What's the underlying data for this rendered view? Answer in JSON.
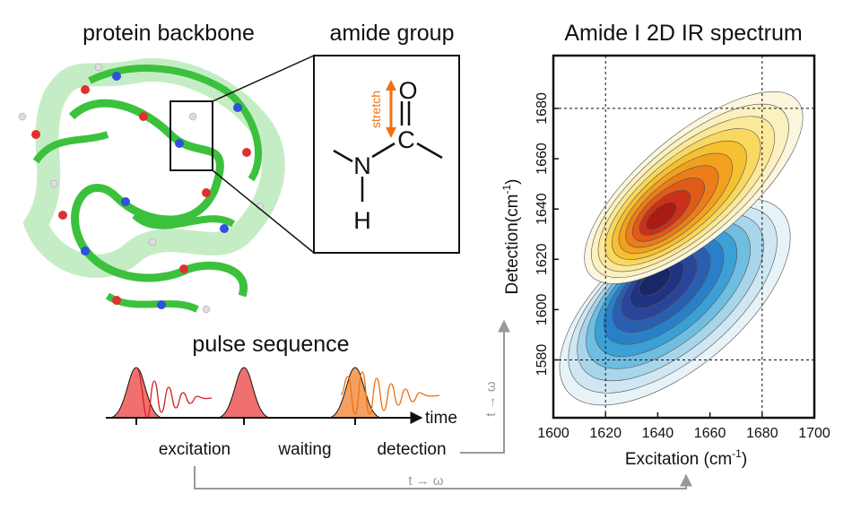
{
  "labels": {
    "protein": "protein backbone",
    "amide": "amide group",
    "stretch": "stretch",
    "atom_o": "O",
    "atom_c": "C",
    "atom_n": "N",
    "atom_h": "H",
    "pulse": "pulse sequence",
    "time": "time",
    "excitation": "excitation",
    "waiting": "waiting",
    "detection": "detection",
    "transform_vertical": "t → ω",
    "transform_bottom": "t → ω"
  },
  "chart_data": {
    "type": "contour",
    "title": "Amide I 2D IR spectrum",
    "x_label": {
      "text": "Excitation (cm",
      "sup": "-1",
      "end": ")"
    },
    "y_label": {
      "text": "Detection(cm",
      "sup": "-1",
      "end": ")"
    },
    "xlim": [
      1600,
      1700
    ],
    "xticks": [
      1600,
      1620,
      1640,
      1660,
      1680,
      1700
    ],
    "ylim": [
      1557,
      1701
    ],
    "yticks": [
      1580,
      1600,
      1620,
      1640,
      1660,
      1680
    ],
    "dashed_x": [
      1620,
      1680
    ],
    "dashed_y": [
      1580,
      1680
    ],
    "positive_peak": {
      "x": 1640,
      "y": 1636
    },
    "negative_peak": {
      "x": 1638,
      "y": 1612
    }
  }
}
